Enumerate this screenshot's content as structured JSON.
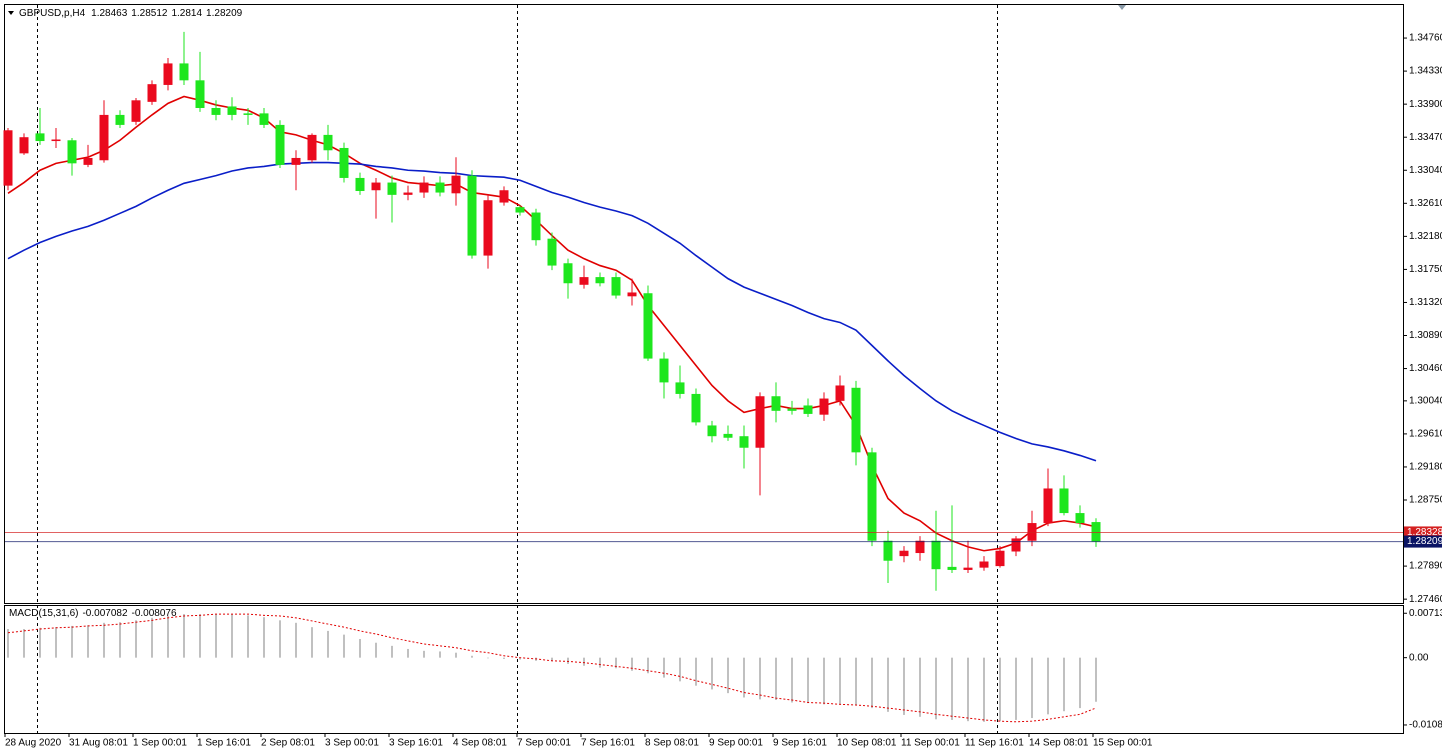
{
  "chart_data": [
    {
      "type": "candlestick",
      "title": "GBPUSD,p,H4",
      "categories": [
        "28 Aug 2020",
        null,
        null,
        null,
        "31 Aug 08:01",
        null,
        null,
        null,
        "1 Sep 00:01",
        null,
        null,
        null,
        "1 Sep 16:01",
        null,
        null,
        null,
        "2 Sep 08:01",
        null,
        null,
        null,
        "3 Sep 00:01",
        null,
        null,
        null,
        "3 Sep 16:01",
        null,
        null,
        null,
        "4 Sep 08:01",
        null,
        null,
        null,
        "7 Sep 00:01",
        null,
        null,
        null,
        "7 Sep 16:01",
        null,
        null,
        null,
        "8 Sep 08:01",
        null,
        null,
        null,
        "9 Sep 00:01",
        null,
        null,
        null,
        "9 Sep 16:01",
        null,
        null,
        null,
        "10 Sep 08:01",
        null,
        null,
        null,
        "11 Sep 00:01",
        null,
        null,
        null,
        "11 Sep 16:01",
        null,
        null,
        null,
        "14 Sep 08:01",
        null,
        null,
        null,
        "15 Sep 00:01"
      ],
      "open": [
        1.3284,
        1.3326,
        1.3352,
        1.3342,
        1.3343,
        1.3311,
        1.3317,
        1.3376,
        1.3367,
        1.3393,
        1.3415,
        1.3443,
        1.3421,
        1.3385,
        1.3387,
        1.3378,
        1.3378,
        1.3363,
        1.3311,
        1.3317,
        1.335,
        1.3333,
        1.3294,
        1.3278,
        1.3288,
        1.3272,
        1.3275,
        1.3288,
        1.3274,
        1.3297,
        1.3193,
        1.3262,
        1.3256,
        1.3249,
        1.3215,
        1.3183,
        1.3155,
        1.3165,
        1.3165,
        1.314,
        1.3144,
        1.3059,
        1.3028,
        1.3013,
        1.2972,
        1.2961,
        1.2958,
        1.2943,
        1.301,
        1.2994,
        1.2998,
        1.2986,
        1.3004,
        1.3021,
        1.2937,
        1.2822,
        1.2802,
        1.2806,
        1.2822,
        1.2788,
        1.2784,
        1.2787,
        1.2789,
        1.2808,
        1.2822,
        1.2845,
        1.289,
        1.2858,
        1.28463
      ],
      "high": [
        1.3359,
        1.3352,
        1.3385,
        1.3359,
        1.3346,
        1.3337,
        1.3395,
        1.3382,
        1.3398,
        1.3421,
        1.345,
        1.3484,
        1.3458,
        1.3395,
        1.3399,
        1.3385,
        1.3385,
        1.3369,
        1.333,
        1.3352,
        1.3363,
        1.334,
        1.3301,
        1.3294,
        1.3297,
        1.3284,
        1.3296,
        1.3296,
        1.3321,
        1.3304,
        1.3272,
        1.3283,
        1.3258,
        1.3254,
        1.3223,
        1.3189,
        1.318,
        1.3171,
        1.3171,
        1.3163,
        1.3154,
        1.3067,
        1.305,
        1.302,
        1.2978,
        1.2972,
        1.2972,
        1.3015,
        1.3028,
        1.3004,
        1.3007,
        1.3015,
        1.3037,
        1.303,
        1.2943,
        1.2835,
        1.2815,
        1.2828,
        1.2861,
        1.2868,
        1.2822,
        1.2802,
        1.2815,
        1.2828,
        1.2861,
        1.2916,
        1.2907,
        1.2868,
        1.28512
      ],
      "low": [
        1.3278,
        1.3324,
        1.3337,
        1.3333,
        1.3297,
        1.3308,
        1.3314,
        1.3359,
        1.3363,
        1.3389,
        1.3408,
        1.3415,
        1.338,
        1.3369,
        1.3369,
        1.3363,
        1.3359,
        1.3307,
        1.3278,
        1.3314,
        1.3317,
        1.3288,
        1.3272,
        1.3241,
        1.3236,
        1.3265,
        1.3268,
        1.327,
        1.3258,
        1.3189,
        1.3176,
        1.3258,
        1.3245,
        1.3206,
        1.3174,
        1.3137,
        1.315,
        1.3153,
        1.3137,
        1.3128,
        1.3056,
        1.3007,
        1.3007,
        1.2972,
        1.295,
        1.2952,
        1.2916,
        1.2881,
        1.2976,
        1.2986,
        1.2983,
        1.2978,
        1.2998,
        1.292,
        1.2815,
        1.2767,
        1.2794,
        1.2796,
        1.2757,
        1.278,
        1.278,
        1.2783,
        1.2787,
        1.2802,
        1.2815,
        1.2841,
        1.2855,
        1.2839,
        1.2814
      ],
      "close": [
        1.3356,
        1.3347,
        1.3342,
        1.3344,
        1.3313,
        1.332,
        1.3376,
        1.3363,
        1.3395,
        1.3416,
        1.3443,
        1.3421,
        1.3385,
        1.3376,
        1.3376,
        1.3376,
        1.3363,
        1.3311,
        1.332,
        1.335,
        1.333,
        1.3294,
        1.3277,
        1.3288,
        1.3272,
        1.3275,
        1.3288,
        1.3275,
        1.3297,
        1.3193,
        1.3265,
        1.3278,
        1.3249,
        1.3213,
        1.318,
        1.3157,
        1.3165,
        1.3157,
        1.3141,
        1.3145,
        1.3059,
        1.3028,
        1.3013,
        1.2976,
        1.2958,
        1.2956,
        1.2943,
        1.301,
        1.2991,
        1.2991,
        1.2987,
        1.3007,
        1.3024,
        1.2937,
        1.2822,
        1.2796,
        1.2809,
        1.2822,
        1.2785,
        1.2784,
        1.2787,
        1.2795,
        1.2809,
        1.2825,
        1.2845,
        1.289,
        1.2858,
        1.2845,
        1.28209
      ],
      "up_color": "#ea0a1e",
      "down_color": "#1ee61e",
      "series": [
        {
          "color": "#e00000",
          "values": [
            1.3274,
            1.3288,
            1.3304,
            1.3313,
            1.3317,
            1.3321,
            1.333,
            1.3343,
            1.336,
            1.3376,
            1.3391,
            1.34,
            1.3395,
            1.3389,
            1.3385,
            1.3382,
            1.3372,
            1.3354,
            1.335,
            1.3343,
            1.3337,
            1.3326,
            1.3313,
            1.3304,
            1.3294,
            1.3288,
            1.3286,
            1.3284,
            1.3286,
            1.3275,
            1.3272,
            1.3269,
            1.3258,
            1.3239,
            1.3219,
            1.32,
            1.3189,
            1.318,
            1.3174,
            1.3161,
            1.3128,
            1.3102,
            1.3076,
            1.305,
            1.3024,
            1.3004,
            1.2989,
            1.2994,
            1.2998,
            1.2994,
            1.2994,
            1.2998,
            1.3004,
            1.2972,
            1.292,
            1.2877,
            1.2858,
            1.2848,
            1.2832,
            1.2822,
            1.2814,
            1.2809,
            1.2812,
            1.2819,
            1.2835,
            1.2845,
            1.2848,
            1.2845,
            1.284
          ]
        },
        {
          "color": "#0a1ec8",
          "values": [
            1.3189,
            1.32,
            1.321,
            1.3218,
            1.3225,
            1.3231,
            1.3239,
            1.3248,
            1.3257,
            1.3268,
            1.3278,
            1.3287,
            1.3292,
            1.3297,
            1.3303,
            1.3307,
            1.3309,
            1.3312,
            1.3313,
            1.3314,
            1.3314,
            1.3313,
            1.3312,
            1.3309,
            1.3307,
            1.3304,
            1.3303,
            1.3301,
            1.33,
            1.3297,
            1.3296,
            1.3295,
            1.3291,
            1.3283,
            1.3275,
            1.3269,
            1.3262,
            1.3256,
            1.3251,
            1.3245,
            1.3235,
            1.3222,
            1.3209,
            1.3193,
            1.3178,
            1.3163,
            1.3152,
            1.3144,
            1.3136,
            1.3128,
            1.3119,
            1.3111,
            1.3106,
            1.3096,
            1.3076,
            1.3056,
            1.3037,
            1.302,
            1.3004,
            1.2991,
            1.2981,
            1.2972,
            1.2963,
            1.2955,
            1.2948,
            1.2944,
            1.2939,
            1.2933,
            1.2926
          ]
        }
      ],
      "price_lines": [
        {
          "value": 1.28328,
          "color": "#d42020"
        },
        {
          "value": 1.28209,
          "color": "#0a1464"
        }
      ],
      "ylim": [
        1.2741,
        1.3519
      ],
      "yticks": [
        {
          "value": 1.3476,
          "label": "1.34760"
        },
        {
          "value": 1.3433,
          "label": "1.34330"
        },
        {
          "value": 1.339,
          "label": "1.33900"
        },
        {
          "value": 1.3347,
          "label": "1.33470"
        },
        {
          "value": 1.3304,
          "label": "1.33040"
        },
        {
          "value": 1.3261,
          "label": "1.32610"
        },
        {
          "value": 1.3218,
          "label": "1.32180"
        },
        {
          "value": 1.3175,
          "label": "1.31750"
        },
        {
          "value": 1.3132,
          "label": "1.31320"
        },
        {
          "value": 1.3089,
          "label": "1.30890"
        },
        {
          "value": 1.3046,
          "label": "1.30460"
        },
        {
          "value": 1.3004,
          "label": "1.30040"
        },
        {
          "value": 1.2961,
          "label": "1.29610"
        },
        {
          "value": 1.2918,
          "label": "1.29180"
        },
        {
          "value": 1.2875,
          "label": "1.28750"
        },
        {
          "value": 1.2789,
          "label": "1.27890"
        },
        {
          "value": 1.2746,
          "label": "1.27460"
        }
      ]
    },
    {
      "type": "bar",
      "title": "MACD(15,31,6)",
      "series": [
        {
          "color": "#c0c0c0",
          "values": [
            0.0046,
            0.0046,
            0.0048,
            0.0049,
            0.0051,
            0.0052,
            0.0056,
            0.0057,
            0.006,
            0.0064,
            0.0067,
            0.007,
            0.007,
            0.007,
            0.007,
            0.0068,
            0.0065,
            0.006,
            0.0056,
            0.0049,
            0.0043,
            0.0037,
            0.003,
            0.0024,
            0.0019,
            0.0014,
            0.0011,
            0.001,
            0.0008,
            0.0003,
            -0.0001,
            -0.0002,
            -0.0003,
            -0.0005,
            -0.0006,
            -0.001,
            -0.0013,
            -0.0016,
            -0.0017,
            -0.0021,
            -0.0025,
            -0.0032,
            -0.0038,
            -0.0045,
            -0.0051,
            -0.0057,
            -0.0064,
            -0.0067,
            -0.0068,
            -0.0072,
            -0.0073,
            -0.0075,
            -0.0075,
            -0.0076,
            -0.0081,
            -0.0087,
            -0.0092,
            -0.0095,
            -0.0099,
            -0.01,
            -0.0102,
            -0.0103,
            -0.0102,
            -0.01,
            -0.0097,
            -0.0091,
            -0.0086,
            -0.0081,
            -0.007082
          ]
        },
        {
          "type": "line",
          "color": "#e00000",
          "values": [
            0.004,
            0.0043,
            0.0046,
            0.0048,
            0.0049,
            0.0051,
            0.0052,
            0.0054,
            0.0057,
            0.006,
            0.0064,
            0.0067,
            0.0068,
            0.007,
            0.007,
            0.007,
            0.0068,
            0.0067,
            0.0064,
            0.0059,
            0.0054,
            0.0049,
            0.0043,
            0.0038,
            0.0032,
            0.0027,
            0.0022,
            0.0019,
            0.0016,
            0.0011,
            0.0008,
            0.0003,
            0,
            -0.0002,
            -0.0005,
            -0.0006,
            -0.0008,
            -0.0011,
            -0.0014,
            -0.0017,
            -0.0021,
            -0.0025,
            -0.003,
            -0.0037,
            -0.0043,
            -0.0049,
            -0.0056,
            -0.006,
            -0.0065,
            -0.0068,
            -0.0072,
            -0.0073,
            -0.0075,
            -0.0076,
            -0.0078,
            -0.0081,
            -0.0084,
            -0.0087,
            -0.0091,
            -0.0094,
            -0.0097,
            -0.01,
            -0.0102,
            -0.0103,
            -0.0102,
            -0.0099,
            -0.0095,
            -0.0091,
            -0.008076
          ]
        }
      ],
      "ylim": [
        -0.0121,
        0.0083
      ],
      "yticks": [
        0.007134,
        {
          "value": 0,
          "label": "0.00"
        },
        -0.01081
      ]
    }
  ]
}
